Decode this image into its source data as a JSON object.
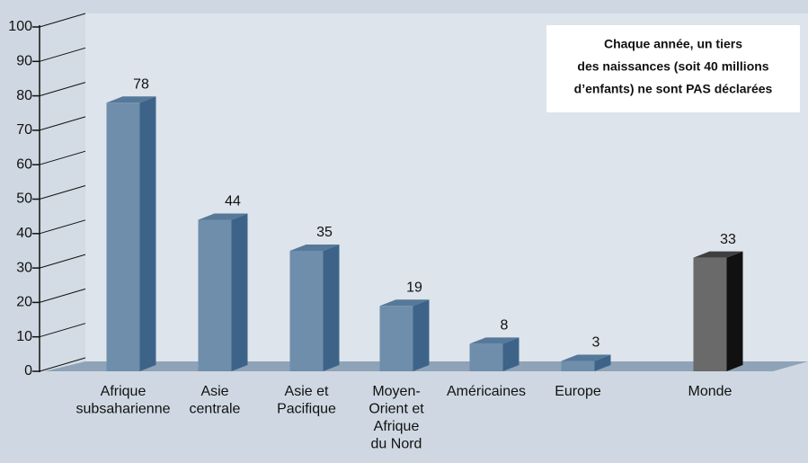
{
  "chart_data": {
    "type": "bar3d",
    "categories": [
      [
        "Afrique",
        "subsaharienne"
      ],
      [
        "Asie",
        "centrale"
      ],
      [
        "Asie et",
        "Pacifique"
      ],
      [
        "Moyen-",
        "Orient et",
        "Afrique",
        "du Nord"
      ],
      [
        "Américaines"
      ],
      [
        "Europe"
      ],
      [
        "Monde"
      ]
    ],
    "values": [
      78,
      44,
      35,
      19,
      8,
      3,
      33
    ],
    "colors": [
      "#6f8eab",
      "#6f8eab",
      "#6f8eab",
      "#6f8eab",
      "#6f8eab",
      "#6f8eab",
      "#6a6a6a"
    ],
    "ylim": [
      0,
      100
    ],
    "yticks": [
      0,
      10,
      20,
      30,
      40,
      50,
      60,
      70,
      80,
      90,
      100
    ],
    "grid": true,
    "annotation": [
      "Chaque année, un tiers",
      "des naissances (soit 40 millions",
      "d’enfants)  ne sont PAS déclarées"
    ]
  }
}
